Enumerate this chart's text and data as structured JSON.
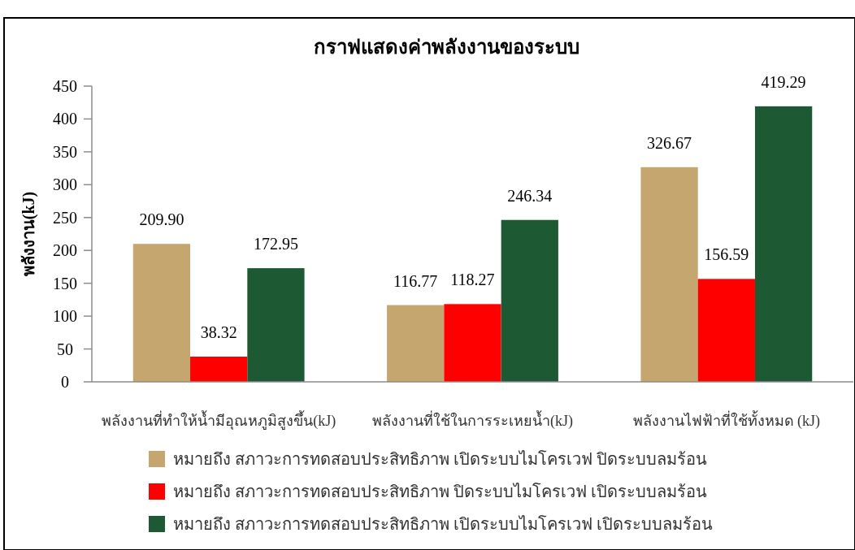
{
  "chart_data": {
    "type": "bar",
    "title": "กราฟแสดงค่าพลังงานของระบบ",
    "ylabel": "พลังงาน(kJ)",
    "categories": [
      "พลังงานที่ทำให้น้ำมีอุณหภูมิสูงขึ้น(kJ)",
      "พลังงานที่ใช้ในการระเหยน้ำ(kJ)",
      "พลังงานไฟฟ้าที่ใช้ทั้งหมด (kJ)"
    ],
    "series": [
      {
        "name": "หมายถึง สภาวะการทดสอบประสิทธิภาพ เปิดระบบไมโครเวฟ ปิดระบบลมร้อน",
        "color": "#c4a66e",
        "values": [
          209.9,
          116.77,
          326.67
        ],
        "value_labels": [
          "209.90",
          "116.77",
          "326.67"
        ]
      },
      {
        "name": "หมายถึง สภาวะการทดสอบประสิทธิภาพ ปิดระบบไมโครเวฟ เปิดระบบลมร้อน",
        "color": "#ff0000",
        "values": [
          38.32,
          118.27,
          156.59
        ],
        "value_labels": [
          "38.32",
          "118.27",
          "156.59"
        ]
      },
      {
        "name": "หมายถึง สภาวะการทดสอบประสิทธิภาพ เปิดระบบไมโครเวฟ เปิดระบบลมร้อน",
        "color": "#1d5a34",
        "values": [
          172.95,
          246.34,
          419.29
        ],
        "value_labels": [
          "172.95",
          "246.34",
          "419.29"
        ]
      }
    ],
    "ylim": [
      0,
      450
    ],
    "yticks": [
      0,
      50,
      100,
      150,
      200,
      250,
      300,
      350,
      400,
      450
    ],
    "legend": "bottom"
  }
}
